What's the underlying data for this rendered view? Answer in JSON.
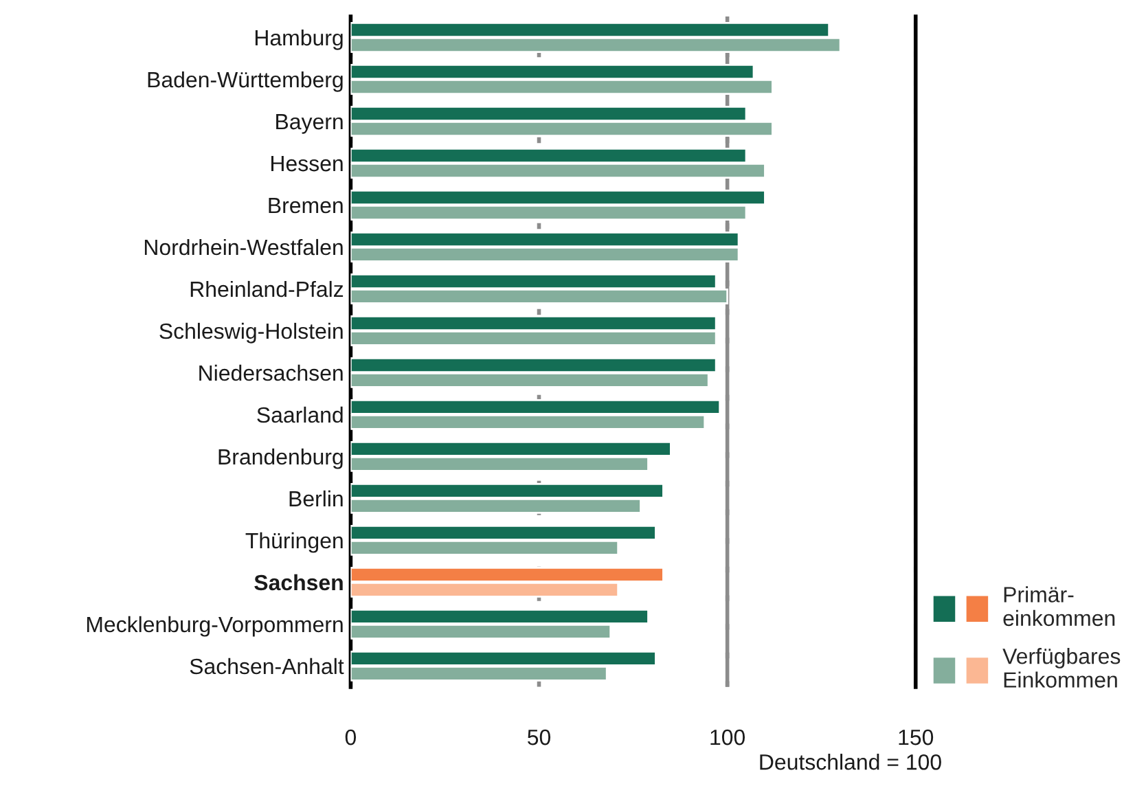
{
  "chart_data": {
    "type": "bar",
    "orientation": "horizontal",
    "categories": [
      "Hamburg",
      "Baden-Württemberg",
      "Bayern",
      "Hessen",
      "Bremen",
      "Nordrhein-Westfalen",
      "Rheinland-Pfalz",
      "Schleswig-Holstein",
      "Niedersachsen",
      "Saarland",
      "Brandenburg",
      "Berlin",
      "Thüringen",
      "Sachsen",
      "Mecklenburg-Vorpommern",
      "Sachsen-Anhalt"
    ],
    "series": [
      {
        "name": "Primär-\neinkommen",
        "color": "#146e55",
        "colors": [
          "#146e55",
          "#146e55",
          "#146e55",
          "#146e55",
          "#146e55",
          "#146e55",
          "#146e55",
          "#146e55",
          "#146e55",
          "#146e55",
          "#146e55",
          "#146e55",
          "#146e55",
          "#f47f45",
          "#146e55",
          "#146e55"
        ],
        "values": [
          127,
          107,
          105,
          105,
          110,
          103,
          97,
          97,
          97,
          98,
          85,
          83,
          81,
          83,
          79,
          81
        ]
      },
      {
        "name": "Verfügbares\nEinkommen",
        "color": "#84ae9c",
        "colors": [
          "#84ae9c",
          "#84ae9c",
          "#84ae9c",
          "#84ae9c",
          "#84ae9c",
          "#84ae9c",
          "#84ae9c",
          "#84ae9c",
          "#84ae9c",
          "#84ae9c",
          "#84ae9c",
          "#84ae9c",
          "#84ae9c",
          "#fbb793",
          "#84ae9c",
          "#84ae9c"
        ],
        "values": [
          130,
          112,
          112,
          110,
          105,
          103,
          100,
          97,
          95,
          94,
          79,
          77,
          71,
          71,
          69,
          68
        ]
      }
    ],
    "xlim": [
      0,
      150
    ],
    "xticks": [
      0,
      50,
      100,
      150
    ],
    "xlabel": "Deutschland = 100",
    "ref_lines": [
      {
        "axis": "x",
        "value": 100,
        "color": "#8c8c8c"
      }
    ],
    "grid": "x",
    "legend": "bottom right"
  }
}
